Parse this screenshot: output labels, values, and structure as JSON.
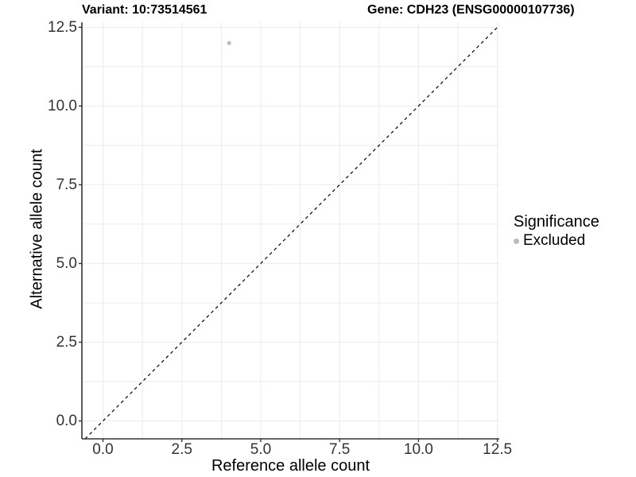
{
  "chart_data": {
    "type": "scatter",
    "title_left": "Variant: 10:73514561",
    "title_right": "Gene: CDH23 (ENSG00000107736)",
    "xlabel": "Reference allele count",
    "ylabel": "Alternative allele count",
    "x_ticks": [
      0.0,
      2.5,
      5.0,
      7.5,
      10.0,
      12.5
    ],
    "y_ticks": [
      0.0,
      2.5,
      5.0,
      7.5,
      10.0,
      12.5
    ],
    "tick_decimals": 1,
    "minor_grid_step": 1.25,
    "xlim": [
      -0.668,
      12.56
    ],
    "ylim": [
      -0.568,
      12.66
    ],
    "grid": true,
    "legend_position": "right",
    "points": [
      {
        "x": 4,
        "y": 12,
        "significance": "Excluded"
      }
    ],
    "reference_line": {
      "equation": "y = x",
      "style": "dashed",
      "color": "#000000"
    },
    "legend": {
      "title": "Significance",
      "items": [
        {
          "label": "Excluded",
          "color": "#bdbdbd"
        }
      ]
    },
    "style": {
      "grid_color": "#ebebeb",
      "axis_color": "#333333",
      "tick_label_color": "#333333",
      "background": "#ffffff",
      "point_radius": 2.6
    }
  }
}
